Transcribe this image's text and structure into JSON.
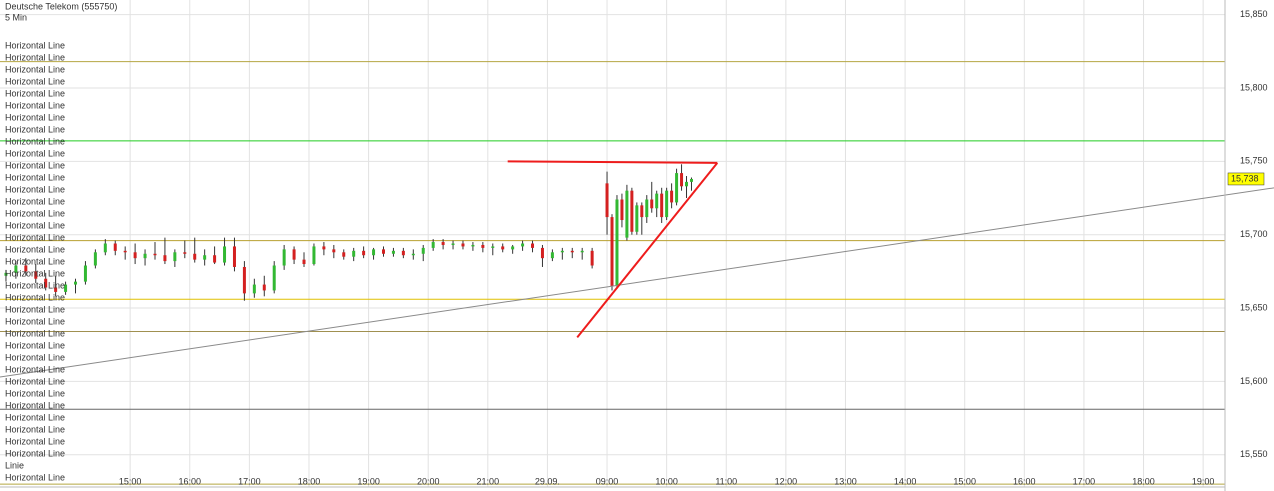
{
  "chart_data": {
    "type": "candlestick",
    "title": "Deutsche Telekom (555750)",
    "subtitle": "5 Min",
    "xlim": [
      -131,
      1102
    ],
    "ylim": [
      15528,
      15860
    ],
    "xticks": [
      {
        "value": 0,
        "label": "15:00"
      },
      {
        "value": 60,
        "label": "16:00"
      },
      {
        "value": 120,
        "label": "17:00"
      },
      {
        "value": 180,
        "label": "18:00"
      },
      {
        "value": 240,
        "label": "19:00"
      },
      {
        "value": 300,
        "label": "20:00"
      },
      {
        "value": 360,
        "label": "21:00"
      },
      {
        "value": 420,
        "label": "29.09."
      },
      {
        "value": 480,
        "label": "09:00"
      },
      {
        "value": 540,
        "label": "10:00"
      },
      {
        "value": 600,
        "label": "11:00"
      },
      {
        "value": 660,
        "label": "12:00"
      },
      {
        "value": 720,
        "label": "13:00"
      },
      {
        "value": 780,
        "label": "14:00"
      },
      {
        "value": 840,
        "label": "15:00"
      },
      {
        "value": 900,
        "label": "16:00"
      },
      {
        "value": 960,
        "label": "17:00"
      },
      {
        "value": 1020,
        "label": "18:00"
      },
      {
        "value": 1080,
        "label": "19:00"
      }
    ],
    "yticks": [
      {
        "value": 15550,
        "label": "15,550"
      },
      {
        "value": 15600,
        "label": "15,600"
      },
      {
        "value": 15650,
        "label": "15,650"
      },
      {
        "value": 15700,
        "label": "15,700"
      },
      {
        "value": 15750,
        "label": "15,750"
      },
      {
        "value": 15800,
        "label": "15,800"
      },
      {
        "value": 15850,
        "label": "15,850"
      }
    ],
    "grid": true,
    "up_color": "#33b833",
    "down_color": "#d42020",
    "candles": {
      "x": [
        -125,
        -115,
        -105,
        -95,
        -85,
        -75,
        -65,
        -55,
        -45,
        -35,
        -25,
        -15,
        -5,
        5,
        15,
        25,
        35,
        45,
        55,
        65,
        75,
        85,
        95,
        105,
        115,
        125,
        135,
        145,
        155,
        165,
        175,
        185,
        195,
        205,
        215,
        225,
        235,
        245,
        255,
        265,
        275,
        285,
        295,
        305,
        315,
        325,
        335,
        345,
        355,
        365,
        375,
        385,
        395,
        405,
        415,
        425,
        435,
        445,
        455,
        465,
        480,
        485,
        490,
        495,
        500,
        505,
        510,
        515,
        520,
        525,
        530,
        535,
        540,
        545,
        550,
        555,
        560,
        565
      ],
      "open": [
        15672,
        15674,
        15679,
        15675,
        15670,
        15664,
        15661,
        15666,
        15668,
        15679,
        15688,
        15694,
        15689,
        15688,
        15684,
        15687,
        15686,
        15682,
        15688,
        15687,
        15683,
        15686,
        15681,
        15692,
        15678,
        15660,
        15666,
        15662,
        15679,
        15690,
        15683,
        15680,
        15692,
        15690,
        15688,
        15685,
        15689,
        15686,
        15690,
        15687,
        15689,
        15686,
        15687,
        15691,
        15695,
        15693,
        15694,
        15692,
        15693,
        15691,
        15692,
        15690,
        15692,
        15694,
        15691,
        15684,
        15688,
        15689,
        15688,
        15689,
        15735,
        15712,
        15665,
        15724,
        15698,
        15730,
        15702,
        15720,
        15712,
        15724,
        15718,
        15728,
        15712,
        15730,
        15722,
        15742,
        15733,
        15736
      ],
      "high": [
        15676,
        15682,
        15684,
        15680,
        15674,
        15672,
        15668,
        15670,
        15682,
        15690,
        15697,
        15696,
        15692,
        15694,
        15690,
        15695,
        15698,
        15690,
        15696,
        15698,
        15690,
        15692,
        15698,
        15698,
        15682,
        15670,
        15672,
        15682,
        15693,
        15692,
        15688,
        15694,
        15695,
        15693,
        15690,
        15691,
        15692,
        15691,
        15692,
        15691,
        15691,
        15690,
        15693,
        15697,
        15697,
        15696,
        15696,
        15695,
        15695,
        15694,
        15694,
        15693,
        15696,
        15696,
        15693,
        15690,
        15691,
        15691,
        15691,
        15691,
        15743,
        15714,
        15727,
        15728,
        15734,
        15732,
        15722,
        15722,
        15727,
        15736,
        15730,
        15732,
        15732,
        15735,
        15745,
        15748,
        15740,
        15739
      ],
      "low": [
        15668,
        15670,
        15672,
        15667,
        15662,
        15658,
        15659,
        15660,
        15666,
        15677,
        15686,
        15686,
        15683,
        15680,
        15679,
        15683,
        15680,
        15678,
        15684,
        15681,
        15679,
        15680,
        15679,
        15675,
        15655,
        15657,
        15658,
        15660,
        15676,
        15680,
        15678,
        15679,
        15686,
        15684,
        15683,
        15682,
        15684,
        15683,
        15685,
        15685,
        15684,
        15683,
        15682,
        15689,
        15690,
        15690,
        15690,
        15689,
        15688,
        15686,
        15688,
        15687,
        15689,
        15688,
        15678,
        15682,
        15683,
        15684,
        15683,
        15677,
        15700,
        15662,
        15663,
        15705,
        15696,
        15700,
        15700,
        15700,
        15708,
        15715,
        15712,
        15708,
        15710,
        15718,
        15720,
        15730,
        15725,
        15730
      ],
      "close": [
        15674,
        15679,
        15675,
        15670,
        15664,
        15661,
        15666,
        15668,
        15679,
        15688,
        15694,
        15689,
        15688,
        15684,
        15687,
        15686,
        15682,
        15688,
        15687,
        15683,
        15686,
        15681,
        15692,
        15678,
        15660,
        15666,
        15662,
        15679,
        15690,
        15683,
        15680,
        15692,
        15690,
        15688,
        15685,
        15689,
        15686,
        15690,
        15687,
        15689,
        15686,
        15687,
        15691,
        15695,
        15693,
        15694,
        15692,
        15693,
        15691,
        15692,
        15690,
        15692,
        15694,
        15691,
        15684,
        15688,
        15689,
        15688,
        15689,
        15679,
        15712,
        15665,
        15724,
        15710,
        15730,
        15702,
        15720,
        15712,
        15724,
        15718,
        15728,
        15712,
        15730,
        15722,
        15742,
        15733,
        15736,
        15738
      ]
    },
    "levels": [
      {
        "value": 15818,
        "color": "#b5a642"
      },
      {
        "value": 15764,
        "color": "#22cc22"
      },
      {
        "value": 15696,
        "color": "#b8a030"
      },
      {
        "value": 15656,
        "color": "#e0c000"
      },
      {
        "value": 15634,
        "color": "#a09050"
      },
      {
        "value": 15581,
        "color": "#666666"
      },
      {
        "value": 15530,
        "color": "#b5a642"
      }
    ],
    "trendlines": [
      {
        "color": "#8a8a8a",
        "x": [
          -131,
          1152
        ],
        "y": [
          15603,
          15732
        ]
      },
      {
        "color": "#ee1c1c",
        "x": [
          380,
          591
        ],
        "y": [
          15750,
          15749
        ]
      },
      {
        "color": "#ee1c1c",
        "x": [
          591,
          450
        ],
        "y": [
          15749,
          15630
        ]
      }
    ],
    "last_price": {
      "value": 15738,
      "label": "15,738"
    },
    "line_labels": [
      {
        "text": "Horizontal Line",
        "color": "#777777"
      },
      {
        "text": "Horizontal Line",
        "color": "#777777"
      },
      {
        "text": "Horizontal Line",
        "color": "#00cccc"
      },
      {
        "text": "Horizontal Line",
        "color": "#777777"
      },
      {
        "text": "Horizontal Line",
        "color": "#22cc22"
      },
      {
        "text": "Horizontal Line",
        "color": "#777777"
      },
      {
        "text": "Horizontal Line",
        "color": "#777777"
      },
      {
        "text": "Horizontal Line",
        "color": "#00cccc"
      },
      {
        "text": "Horizontal Line",
        "color": "#777777"
      },
      {
        "text": "Horizontal Line",
        "color": "#777777"
      },
      {
        "text": "Horizontal Line",
        "color": "#777777"
      },
      {
        "text": "Horizontal Line",
        "color": "#777777"
      },
      {
        "text": "Horizontal Line",
        "color": "#777777"
      },
      {
        "text": "Horizontal Line",
        "color": "#b8a040"
      },
      {
        "text": "Horizontal Line",
        "color": "#b8a040"
      },
      {
        "text": "Horizontal Line",
        "color": "#e060b0"
      },
      {
        "text": "Horizontal Line",
        "color": "#b8a040"
      },
      {
        "text": "Horizontal Line",
        "color": "#b8a040"
      },
      {
        "text": "Horizontal Line",
        "color": "#b8a040"
      },
      {
        "text": "Horizontal Line",
        "color": "#b8a040"
      },
      {
        "text": "Horizontal Line",
        "color": "#777777"
      },
      {
        "text": "Horizontal Line",
        "color": "#777777"
      },
      {
        "text": "Horizontal Line",
        "color": "#777777"
      },
      {
        "text": "Horizontal Line",
        "color": "#22cc22"
      },
      {
        "text": "Horizontal Line",
        "color": "#777777"
      },
      {
        "text": "Horizontal Line",
        "color": "#2020dd"
      },
      {
        "text": "Horizontal Line",
        "color": "#00cccc"
      },
      {
        "text": "Horizontal Line",
        "color": "#00cccc"
      },
      {
        "text": "Horizontal Line",
        "color": "#2020dd"
      },
      {
        "text": "Horizontal Line",
        "color": "#777777"
      },
      {
        "text": "Horizontal Line",
        "color": "#00cccc"
      },
      {
        "text": "Horizontal Line",
        "color": "#777777"
      },
      {
        "text": "Horizontal Line",
        "color": "#e0b000"
      },
      {
        "text": "Horizontal Line",
        "color": "#e0b000"
      },
      {
        "text": "Horizontal Line",
        "color": "#e060b0"
      },
      {
        "text": "Linie",
        "color": "#e060b0"
      },
      {
        "text": "Horizontal Line",
        "color": "#22cc22"
      }
    ]
  }
}
